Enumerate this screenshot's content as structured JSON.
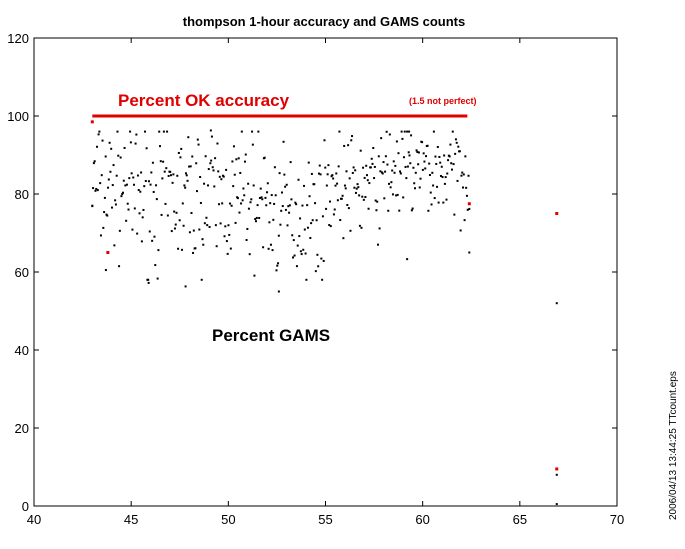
{
  "chart_data": {
    "type": "scatter",
    "title": "thompson 1-hour accuracy and GAMS counts",
    "xlabel": "",
    "ylabel": "",
    "xlim": [
      40,
      70
    ],
    "ylim": [
      0,
      120
    ],
    "xticks": [
      40,
      45,
      50,
      55,
      60,
      65,
      70
    ],
    "yticks": [
      0,
      20,
      40,
      60,
      80,
      100,
      120
    ],
    "grid": false,
    "annotations": {
      "accuracy_label": "Percent OK accuracy",
      "accuracy_note": "(1.5 not perfect)",
      "gams_label": "Percent GAMS",
      "stamp": "2006/04/13 13:44:25   TTcount.eps"
    },
    "series": [
      {
        "name": "Percent OK accuracy",
        "color": "#e00000",
        "segments": [
          {
            "x": [
              43.0,
              62.3
            ],
            "y": [
              100,
              100
            ]
          }
        ],
        "points": [
          {
            "x": 43.0,
            "y": 98.5
          },
          {
            "x": 43.8,
            "y": 65.0
          },
          {
            "x": 62.4,
            "y": 77.5
          },
          {
            "x": 66.9,
            "y": 75.0
          },
          {
            "x": 66.9,
            "y": 9.5
          }
        ]
      },
      {
        "name": "Percent GAMS",
        "color": "#000000",
        "x_range": [
          43.0,
          62.4
        ],
        "y_range": [
          55,
          97
        ],
        "outliers": [
          {
            "x": 43.0,
            "y": 77.0
          },
          {
            "x": 43.7,
            "y": 60.5
          },
          {
            "x": 45.9,
            "y": 57.2
          },
          {
            "x": 47.8,
            "y": 56.3
          },
          {
            "x": 52.6,
            "y": 55.0
          },
          {
            "x": 59.2,
            "y": 63.3
          },
          {
            "x": 62.4,
            "y": 65.0
          },
          {
            "x": 49.1,
            "y": 96.3
          },
          {
            "x": 59.3,
            "y": 96.0
          },
          {
            "x": 66.9,
            "y": 52.0
          },
          {
            "x": 66.9,
            "y": 8.0
          },
          {
            "x": 66.9,
            "y": 0.5
          }
        ]
      }
    ]
  }
}
